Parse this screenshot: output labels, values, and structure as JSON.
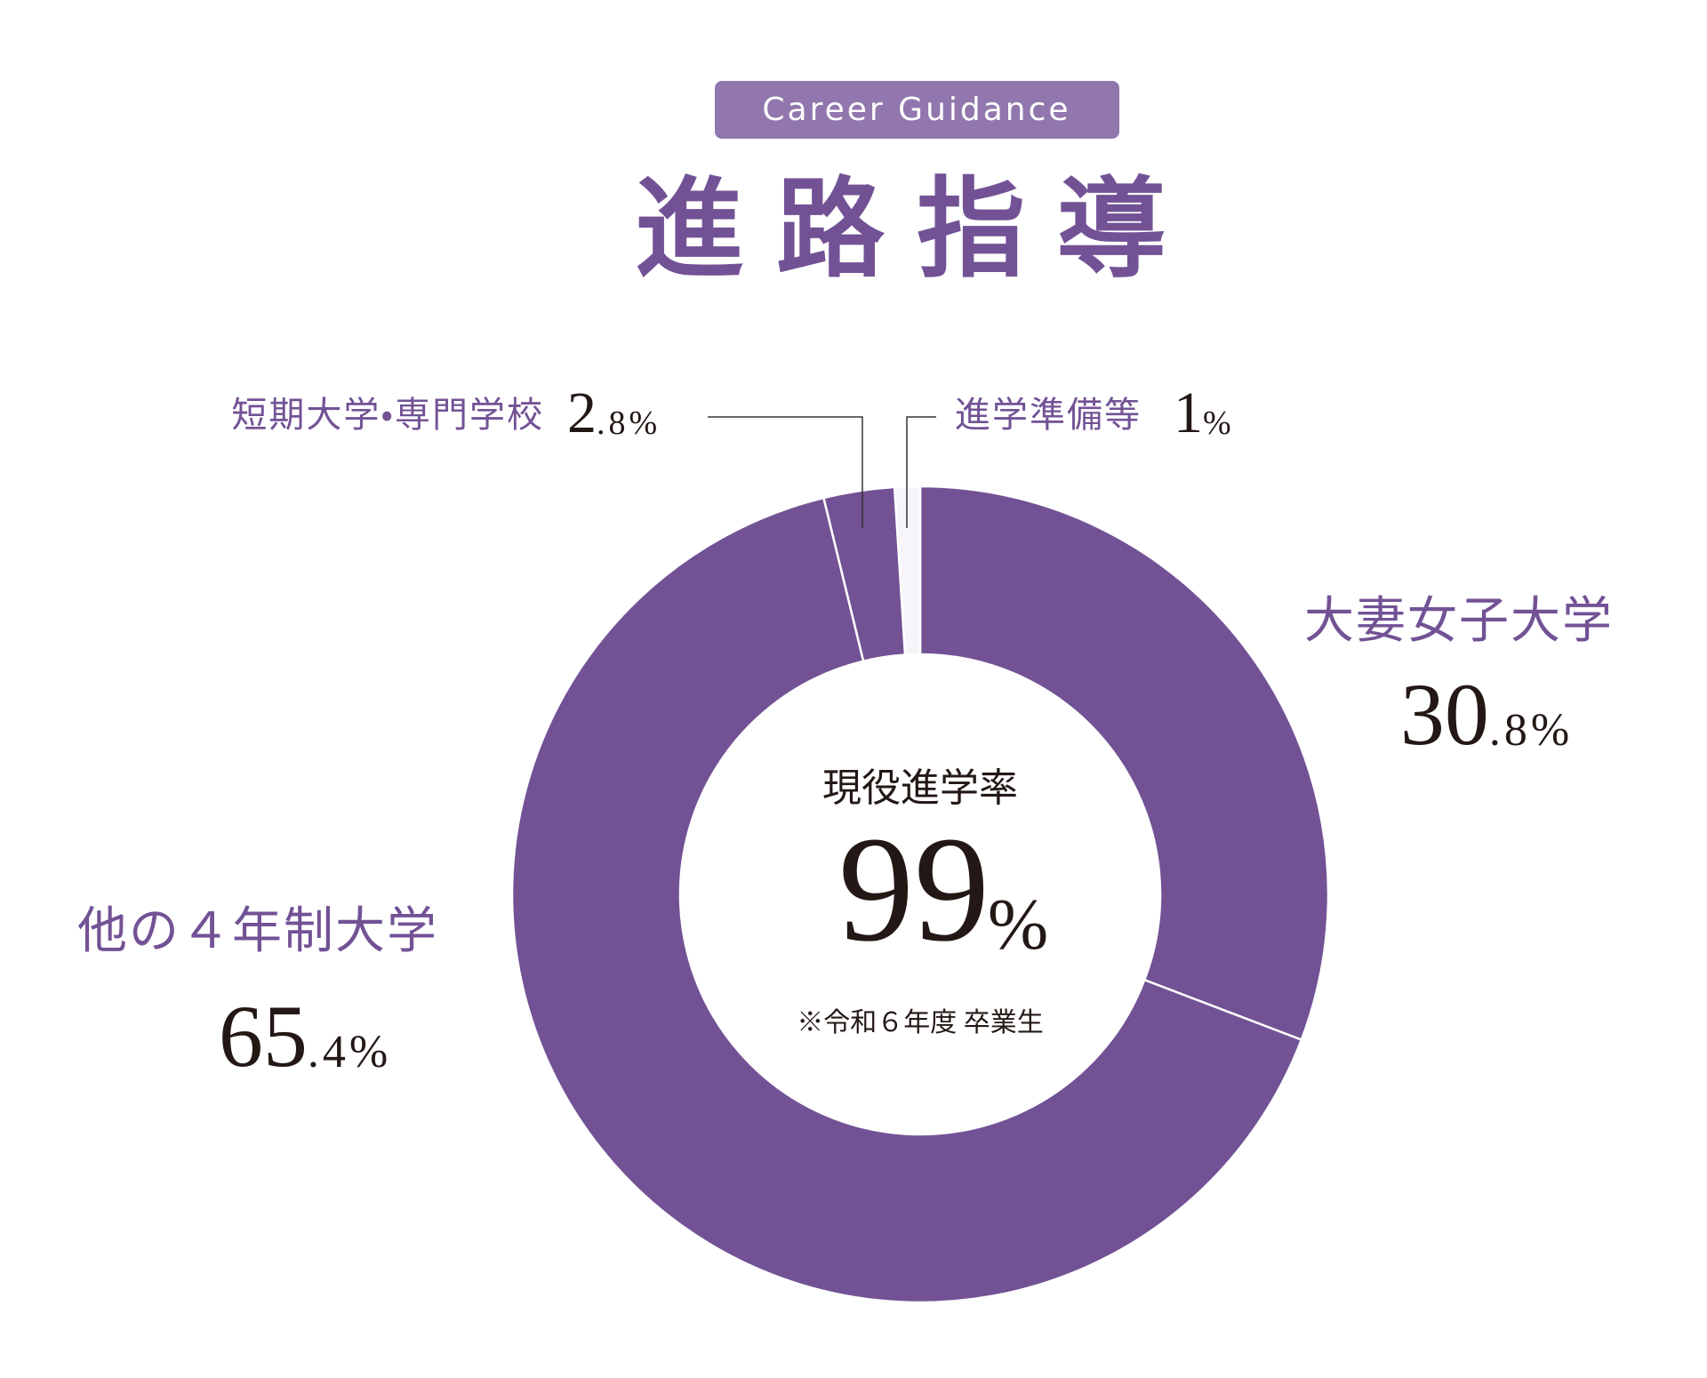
{
  "chart_data": {
    "type": "donut",
    "badge": "Career Guidance",
    "title": "進路指導",
    "center_label": "現役進学率",
    "center_value": 99,
    "center_unit": "%",
    "note": "※令和６年度 卒業生",
    "categories": [
      "大妻女子大学",
      "他の４年制大学",
      "短期大学・専門学校",
      "進学準備等"
    ],
    "values": [
      30.8,
      65.4,
      2.8,
      1
    ],
    "value_labels": [
      "30.8%",
      "65.4%",
      "2.8%",
      "1%"
    ],
    "colors": [
      "#725295",
      "#725295",
      "#725295",
      "#f7f4fa"
    ]
  }
}
